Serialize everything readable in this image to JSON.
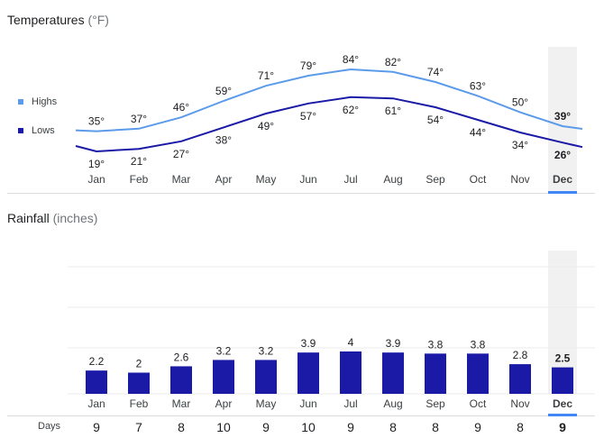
{
  "temperatures": {
    "title": "Temperatures",
    "unit": "(°F)",
    "legend": {
      "highs": "Highs",
      "lows": "Lows"
    }
  },
  "rainfall": {
    "title": "Rainfall",
    "unit": "(inches)"
  },
  "days": {
    "label": "Days"
  },
  "colors": {
    "highs": "#5b9bea",
    "lows": "#1a1aa6",
    "bars": "#1a1aa6",
    "selected_bg": "#f1f1f1",
    "selected_underline": "#4285f4"
  },
  "chart_data": [
    {
      "type": "line",
      "title": "Temperatures (°F)",
      "categories": [
        "Jan",
        "Feb",
        "Mar",
        "Apr",
        "May",
        "Jun",
        "Jul",
        "Aug",
        "Sep",
        "Oct",
        "Nov",
        "Dec"
      ],
      "selected": "Dec",
      "series": [
        {
          "name": "Highs",
          "values": [
            35,
            37,
            46,
            59,
            71,
            79,
            84,
            82,
            74,
            63,
            50,
            39
          ]
        },
        {
          "name": "Lows",
          "values": [
            19,
            21,
            27,
            38,
            49,
            57,
            62,
            61,
            54,
            44,
            34,
            26
          ]
        }
      ]
    },
    {
      "type": "bar",
      "title": "Rainfall (inches)",
      "categories": [
        "Jan",
        "Feb",
        "Mar",
        "Apr",
        "May",
        "Jun",
        "Jul",
        "Aug",
        "Sep",
        "Oct",
        "Nov",
        "Dec"
      ],
      "selected": "Dec",
      "values": [
        2.2,
        2,
        2.6,
        3.2,
        3.2,
        3.9,
        4,
        3.9,
        3.8,
        3.8,
        2.8,
        2.5
      ],
      "days": [
        9,
        7,
        8,
        10,
        9,
        10,
        9,
        8,
        8,
        9,
        8,
        9
      ]
    }
  ]
}
